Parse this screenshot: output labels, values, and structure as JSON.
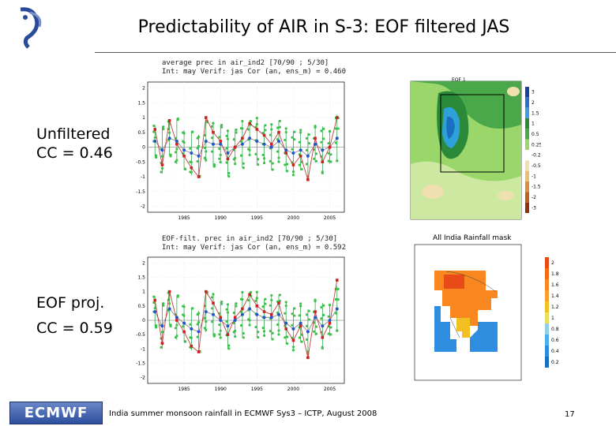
{
  "slide": {
    "title": "Predictability of AIR in S-3: EOF filtered JAS",
    "footer_text": "India summer monsoon rainfall in ECMWF Sys3 – ICTP, August 2008",
    "page_number": "17",
    "logo_text": "ECMWF"
  },
  "labels": {
    "unfiltered_line1": "Unfiltered",
    "unfiltered_line2": "CC = 0.46",
    "eof_line1": "EOF proj.",
    "eof_line2": "CC = 0.59"
  },
  "chart_data": [
    {
      "type": "line",
      "title_line1": "average prec in air_ind2 [70/90 ; 5/30]",
      "title_line2": "Int: may  Verif: jas  Cor (an, ens_m) = 0.460",
      "yticks": [
        "2",
        "1.5",
        "1",
        "0.5",
        "0",
        "-0.5",
        "-1",
        "-1.5",
        "-2"
      ],
      "ylim": [
        -2.2,
        2.2
      ],
      "xticks": [
        "1985",
        "1990",
        "1995",
        "2000",
        "2005"
      ],
      "x": [
        1981,
        1982,
        1983,
        1984,
        1985,
        1986,
        1987,
        1988,
        1989,
        1990,
        1991,
        1992,
        1993,
        1994,
        1995,
        1996,
        1997,
        1998,
        1999,
        2000,
        2001,
        2002,
        2003,
        2004,
        2005,
        2006
      ],
      "series": [
        {
          "role": "analysis",
          "color": "#cc2222",
          "values": [
            0.6,
            -0.6,
            0.9,
            0.1,
            -0.3,
            -0.7,
            -1.0,
            1.0,
            0.5,
            0.2,
            -0.4,
            0.0,
            0.3,
            0.8,
            0.6,
            0.4,
            0.1,
            0.5,
            -0.2,
            -0.6,
            -0.3,
            -1.1,
            0.3,
            -0.5,
            0.0,
            1.0
          ]
        },
        {
          "role": "ensemble_mean",
          "color": "#2255cc",
          "values": [
            0.2,
            -0.1,
            0.3,
            0.2,
            -0.1,
            -0.2,
            -0.3,
            0.2,
            0.1,
            0.1,
            -0.2,
            0.0,
            0.1,
            0.3,
            0.2,
            0.1,
            0.0,
            0.2,
            -0.1,
            -0.2,
            -0.1,
            -0.3,
            0.1,
            -0.1,
            0.0,
            0.3
          ]
        }
      ]
    },
    {
      "type": "line",
      "title_line1": "EOF-filt. prec in air_ind2 [70/90 ; 5/30]",
      "title_line2": "Int: may  Verif: jas  Cor (an, ens_m) = 0.592",
      "yticks": [
        "2",
        "1.5",
        "1",
        "0.5",
        "0",
        "-0.5",
        "-1",
        "-1.5",
        "-2"
      ],
      "ylim": [
        -2.2,
        2.2
      ],
      "xticks": [
        "1985",
        "1990",
        "1995",
        "2000",
        "2005"
      ],
      "x": [
        1981,
        1982,
        1983,
        1984,
        1985,
        1986,
        1987,
        1988,
        1989,
        1990,
        1991,
        1992,
        1993,
        1994,
        1995,
        1996,
        1997,
        1998,
        1999,
        2000,
        2001,
        2002,
        2003,
        2004,
        2005,
        2006
      ],
      "series": [
        {
          "role": "analysis",
          "color": "#cc2222",
          "values": [
            0.7,
            -0.8,
            1.0,
            0.0,
            -0.4,
            -0.9,
            -1.1,
            1.0,
            0.6,
            0.1,
            -0.5,
            0.1,
            0.4,
            0.9,
            0.5,
            0.3,
            0.2,
            0.6,
            -0.3,
            -0.7,
            -0.2,
            -1.3,
            0.3,
            -0.6,
            -0.1,
            1.4
          ]
        },
        {
          "role": "ensemble_mean",
          "color": "#2255cc",
          "values": [
            0.3,
            -0.2,
            0.4,
            0.1,
            -0.1,
            -0.3,
            -0.4,
            0.3,
            0.2,
            0.0,
            -0.2,
            0.0,
            0.2,
            0.4,
            0.2,
            0.1,
            0.1,
            0.2,
            -0.1,
            -0.3,
            -0.1,
            -0.4,
            0.1,
            -0.2,
            0.0,
            0.4
          ]
        }
      ]
    }
  ],
  "maps": {
    "eof_title": "EOF 1",
    "eof_colorbar": [
      "3",
      "2",
      "1.5",
      "1",
      "0.5",
      "0.25",
      "-0.25",
      "-0.5",
      "-1",
      "-1.5",
      "-2",
      "-3"
    ],
    "mask_title": "All India Rainfall mask",
    "mask_colorbar": [
      "2",
      "1.8",
      "1.6",
      "1.4",
      "1.2",
      "1",
      "0.8",
      "0.6",
      "0.4",
      "0.2"
    ]
  }
}
